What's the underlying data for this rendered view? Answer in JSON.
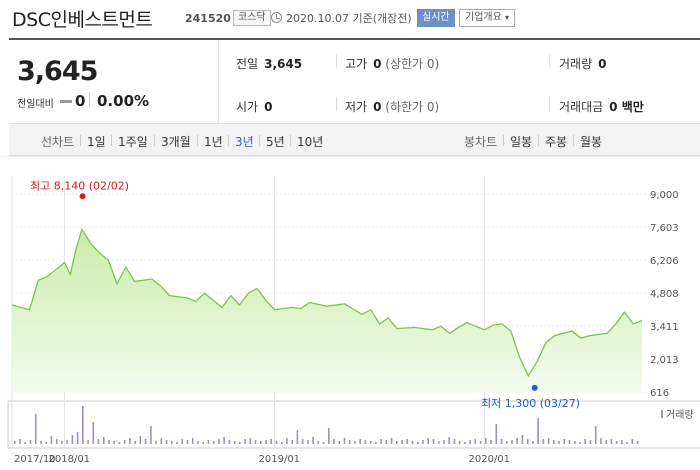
{
  "header": {
    "name": "DSC인베스트먼트",
    "code": "241520",
    "market": "코스닥",
    "date": "2020.10.07",
    "date_suffix": "기준(개장전)",
    "realtime_label": "실시간",
    "overview_label": "기업개요"
  },
  "summary": {
    "price": "3,645",
    "change_label": "전일대비",
    "change": "0",
    "change_pct": "0.00%",
    "prev_close_label": "전일",
    "prev_close": "3,645",
    "high_label": "고가",
    "high": "0",
    "upper_limit": "(상한가 0)",
    "volume_label": "거래량",
    "volume": "0",
    "open_label": "시가",
    "open": "0",
    "low_label": "저가",
    "low": "0",
    "lower_limit": "(하한가 0)",
    "amount_label": "거래대금",
    "amount": "0 백만"
  },
  "tabs": {
    "line_chart_label": "선차트",
    "periods": [
      "1일",
      "1주일",
      "3개월",
      "1년",
      "3년",
      "5년",
      "10년"
    ],
    "active_period": "3년",
    "candle_chart_label": "봉차트",
    "candle_periods": [
      "일봉",
      "주봉",
      "월봉"
    ]
  },
  "colors": {
    "line": "#7bc64a",
    "fill_top": "#c9ecaa",
    "fill_bottom": "#f4fbee",
    "volume_bar": "#a08ec6",
    "high_marker": "#d21d1d",
    "low_marker": "#1c5fc9",
    "active_tab": "#2c5fd1"
  },
  "icons": {
    "clock": "clock-icon",
    "flat_change": "flat-change-icon",
    "overview_dropdown": "chevron-down-icon"
  },
  "chart_data": {
    "type": "area",
    "yticks": [
      "9,000",
      "7,603",
      "6,206",
      "4,808",
      "3,411",
      "2,013",
      "616"
    ],
    "ylim": [
      616,
      9000
    ],
    "xticks": [
      "2017/10",
      "2018/01",
      "2019/01",
      "2020/01"
    ],
    "high_annotation": "최고 8,140 (02/02)",
    "low_annotation": "최저 1,300 (03/27)",
    "high": {
      "date": "2018/02/02",
      "value": 8140
    },
    "low": {
      "date": "2020/03/27",
      "value": 1300
    },
    "volume_legend": "거래량",
    "series": [
      {
        "values": [
          [
            "2017/10",
            4300
          ],
          [
            "2017/11",
            4100
          ],
          [
            "2017/11",
            5350
          ],
          [
            "2017/12",
            5500
          ],
          [
            "2018/01",
            6100
          ],
          [
            "2018/01",
            5600
          ],
          [
            "2018/01",
            6700
          ],
          [
            "2018/02",
            7500
          ],
          [
            "2018/02",
            6900
          ],
          [
            "2018/03",
            6500
          ],
          [
            "2018/03",
            6200
          ],
          [
            "2018/04",
            5200
          ],
          [
            "2018/04",
            5900
          ],
          [
            "2018/05",
            5300
          ],
          [
            "2018/06",
            5400
          ],
          [
            "2018/06",
            5100
          ],
          [
            "2018/07",
            4700
          ],
          [
            "2018/08",
            4600
          ],
          [
            "2018/08",
            4450
          ],
          [
            "2018/09",
            4800
          ],
          [
            "2018/09",
            4500
          ],
          [
            "2018/10",
            4200
          ],
          [
            "2018/10",
            4700
          ],
          [
            "2018/11",
            4300
          ],
          [
            "2018/11",
            4800
          ],
          [
            "2018/12",
            5000
          ],
          [
            "2018/12",
            4500
          ],
          [
            "2019/01",
            4100
          ],
          [
            "2019/02",
            4200
          ],
          [
            "2019/02",
            4150
          ],
          [
            "2019/03",
            4400
          ],
          [
            "2019/04",
            4250
          ],
          [
            "2019/05",
            4350
          ],
          [
            "2019/06",
            3900
          ],
          [
            "2019/06",
            4100
          ],
          [
            "2019/07",
            3500
          ],
          [
            "2019/07",
            3750
          ],
          [
            "2019/08",
            3300
          ],
          [
            "2019/09",
            3350
          ],
          [
            "2019/10",
            3250
          ],
          [
            "2019/10",
            3400
          ],
          [
            "2019/11",
            3100
          ],
          [
            "2019/11",
            3350
          ],
          [
            "2019/12",
            3550
          ],
          [
            "2020/01",
            3250
          ],
          [
            "2020/01",
            3450
          ],
          [
            "2020/02",
            3500
          ],
          [
            "2020/02",
            3200
          ],
          [
            "2020/03",
            2100
          ],
          [
            "2020/03",
            1300
          ],
          [
            "2020/04",
            1900
          ],
          [
            "2020/04",
            2700
          ],
          [
            "2020/05",
            3000
          ],
          [
            "2020/06",
            3200
          ],
          [
            "2020/06",
            2900
          ],
          [
            "2020/07",
            3000
          ],
          [
            "2020/08",
            3100
          ],
          [
            "2020/08",
            3500
          ],
          [
            "2020/09",
            4000
          ],
          [
            "2020/09",
            3500
          ],
          [
            "2020/10",
            3645
          ]
        ]
      }
    ]
  }
}
